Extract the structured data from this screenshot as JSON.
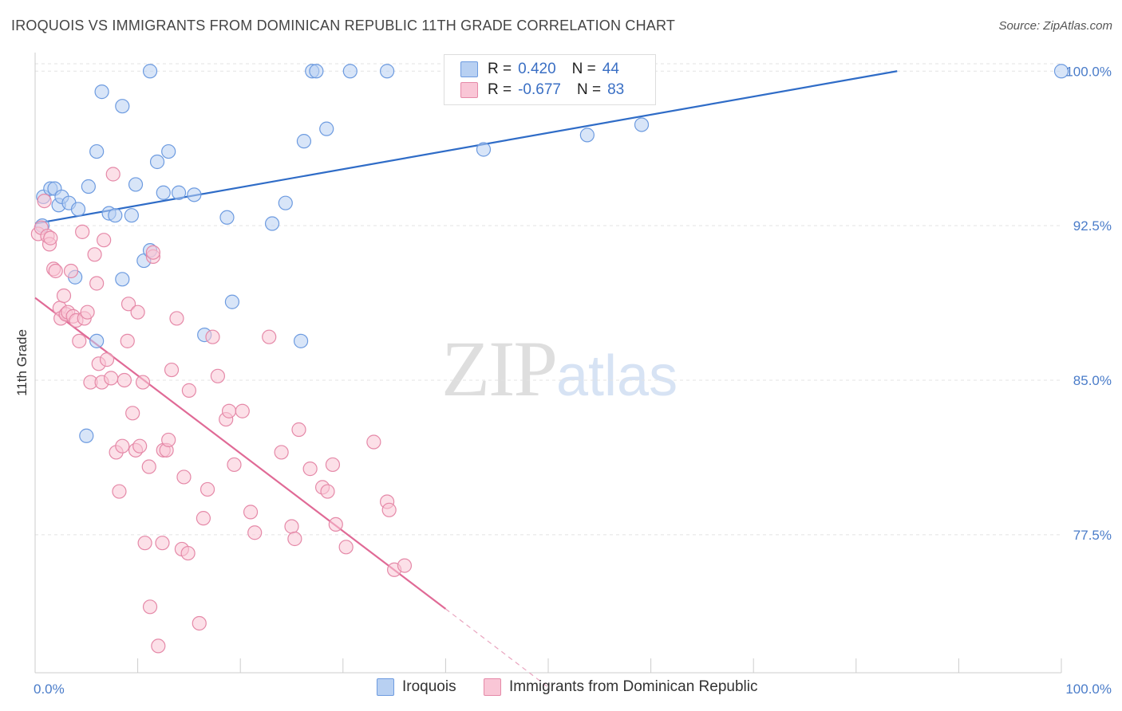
{
  "title": "IROQUOIS VS IMMIGRANTS FROM DOMINICAN REPUBLIC 11TH GRADE CORRELATION CHART",
  "source": "Source: ZipAtlas.com",
  "watermark": {
    "zip": "ZIP",
    "atlas": "atlas"
  },
  "legend": {
    "r_label": "R =",
    "n_label": "N =",
    "rows": [
      {
        "r": "0.420",
        "n": "44"
      },
      {
        "r": "-0.677",
        "n": "83"
      }
    ]
  },
  "bottom_legend": [
    "Iroquois",
    "Immigrants from Dominican Republic"
  ],
  "colors": {
    "blue": "#4a7cc9",
    "blue_fill": "#b8d0f2",
    "pink": "#e06a96",
    "pink_fill": "#f9c6d6"
  },
  "chart_data": {
    "type": "scatter",
    "title": "IROQUOIS VS IMMIGRANTS FROM DOMINICAN REPUBLIC 11TH GRADE CORRELATION CHART",
    "xlabel": "",
    "ylabel": "11th Grade",
    "xlim": [
      0,
      100
    ],
    "ylim": [
      70.8,
      100.9
    ],
    "x_tick_labels": [
      "0.0%",
      "100.0%"
    ],
    "y_ticks": [
      77.5,
      85.0,
      92.5,
      100.0
    ],
    "y_tick_labels": [
      "77.5%",
      "85.0%",
      "92.5%",
      "100.0%"
    ],
    "grid": true,
    "series": [
      {
        "name": "Iroquois",
        "color": "#4a7cc9",
        "points": [
          [
            0.7,
            92.5
          ],
          [
            0.8,
            93.9
          ],
          [
            1.5,
            94.3
          ],
          [
            1.9,
            94.3
          ],
          [
            2.3,
            93.5
          ],
          [
            2.6,
            93.9
          ],
          [
            3.3,
            93.6
          ],
          [
            4.2,
            93.3
          ],
          [
            5.2,
            94.4
          ],
          [
            6.0,
            96.1
          ],
          [
            6.5,
            99.0
          ],
          [
            7.2,
            93.1
          ],
          [
            7.8,
            93.0
          ],
          [
            8.5,
            98.3
          ],
          [
            9.4,
            93.0
          ],
          [
            9.8,
            94.5
          ],
          [
            10.6,
            90.8
          ],
          [
            11.2,
            91.3
          ],
          [
            11.9,
            95.6
          ],
          [
            12.5,
            94.1
          ],
          [
            13.0,
            96.1
          ],
          [
            14.0,
            94.1
          ],
          [
            15.5,
            94.0
          ],
          [
            16.5,
            87.2
          ],
          [
            18.7,
            92.9
          ],
          [
            19.2,
            88.8
          ],
          [
            23.1,
            92.6
          ],
          [
            24.4,
            93.6
          ],
          [
            25.9,
            86.9
          ],
          [
            26.2,
            96.6
          ],
          [
            27.0,
            100.0
          ],
          [
            27.4,
            100.0
          ],
          [
            28.4,
            97.2
          ],
          [
            30.7,
            100.0
          ],
          [
            34.3,
            100.0
          ],
          [
            43.7,
            96.2
          ],
          [
            53.8,
            96.9
          ],
          [
            59.1,
            97.4
          ],
          [
            100.0,
            100.0
          ],
          [
            11.2,
            100.0
          ],
          [
            6.0,
            86.9
          ],
          [
            8.5,
            89.9
          ],
          [
            3.9,
            90.0
          ],
          [
            5.0,
            82.3
          ]
        ],
        "trend": {
          "x": [
            0,
            84
          ],
          "y": [
            92.6,
            100.0
          ]
        }
      },
      {
        "name": "Immigrants from Dominican Republic",
        "color": "#e06a96",
        "points": [
          [
            0.3,
            92.1
          ],
          [
            0.6,
            92.4
          ],
          [
            0.9,
            93.7
          ],
          [
            1.2,
            92.0
          ],
          [
            1.4,
            91.6
          ],
          [
            1.5,
            91.9
          ],
          [
            1.8,
            90.4
          ],
          [
            2.0,
            90.3
          ],
          [
            2.4,
            88.5
          ],
          [
            2.5,
            88.0
          ],
          [
            2.8,
            89.1
          ],
          [
            3.0,
            88.2
          ],
          [
            3.2,
            88.3
          ],
          [
            3.5,
            90.3
          ],
          [
            3.7,
            88.1
          ],
          [
            4.0,
            87.9
          ],
          [
            4.3,
            86.9
          ],
          [
            4.6,
            92.2
          ],
          [
            4.8,
            88.0
          ],
          [
            5.1,
            88.3
          ],
          [
            5.4,
            84.9
          ],
          [
            5.8,
            91.1
          ],
          [
            6.0,
            89.7
          ],
          [
            6.2,
            85.8
          ],
          [
            6.5,
            84.9
          ],
          [
            6.7,
            91.8
          ],
          [
            7.0,
            86.0
          ],
          [
            7.4,
            85.1
          ],
          [
            7.6,
            95.0
          ],
          [
            7.9,
            81.5
          ],
          [
            8.2,
            79.6
          ],
          [
            8.5,
            81.8
          ],
          [
            8.7,
            85.0
          ],
          [
            9.0,
            86.9
          ],
          [
            9.1,
            88.7
          ],
          [
            9.5,
            83.4
          ],
          [
            9.8,
            81.6
          ],
          [
            10.0,
            88.3
          ],
          [
            10.2,
            81.8
          ],
          [
            10.5,
            84.9
          ],
          [
            10.7,
            77.1
          ],
          [
            11.1,
            80.8
          ],
          [
            11.2,
            74.0
          ],
          [
            11.5,
            91.0
          ],
          [
            12.0,
            72.1
          ],
          [
            12.4,
            77.1
          ],
          [
            12.5,
            81.6
          ],
          [
            12.8,
            81.6
          ],
          [
            13.0,
            82.1
          ],
          [
            13.3,
            85.5
          ],
          [
            13.8,
            88.0
          ],
          [
            14.3,
            76.8
          ],
          [
            14.5,
            80.3
          ],
          [
            14.9,
            76.6
          ],
          [
            15.0,
            84.5
          ],
          [
            16.0,
            73.2
          ],
          [
            16.4,
            78.3
          ],
          [
            16.8,
            79.7
          ],
          [
            17.3,
            87.1
          ],
          [
            17.8,
            85.2
          ],
          [
            18.6,
            83.1
          ],
          [
            18.9,
            83.5
          ],
          [
            19.4,
            80.9
          ],
          [
            20.2,
            83.5
          ],
          [
            21.0,
            78.6
          ],
          [
            21.4,
            77.6
          ],
          [
            22.8,
            87.1
          ],
          [
            24.0,
            81.5
          ],
          [
            25.0,
            77.9
          ],
          [
            25.3,
            77.3
          ],
          [
            25.7,
            82.6
          ],
          [
            26.8,
            80.7
          ],
          [
            28.0,
            79.8
          ],
          [
            28.5,
            79.6
          ],
          [
            29.0,
            80.9
          ],
          [
            29.3,
            78.0
          ],
          [
            30.3,
            76.9
          ],
          [
            33.0,
            82.0
          ],
          [
            34.3,
            79.1
          ],
          [
            34.5,
            78.7
          ],
          [
            35.0,
            75.8
          ],
          [
            36.0,
            76.0
          ],
          [
            11.5,
            91.2
          ]
        ],
        "trend": {
          "x": [
            0,
            40
          ],
          "y": [
            89.0,
            73.9
          ]
        },
        "trend_dashed": {
          "x": [
            40,
            50
          ],
          "y": [
            73.9,
            70.1
          ]
        }
      }
    ]
  }
}
